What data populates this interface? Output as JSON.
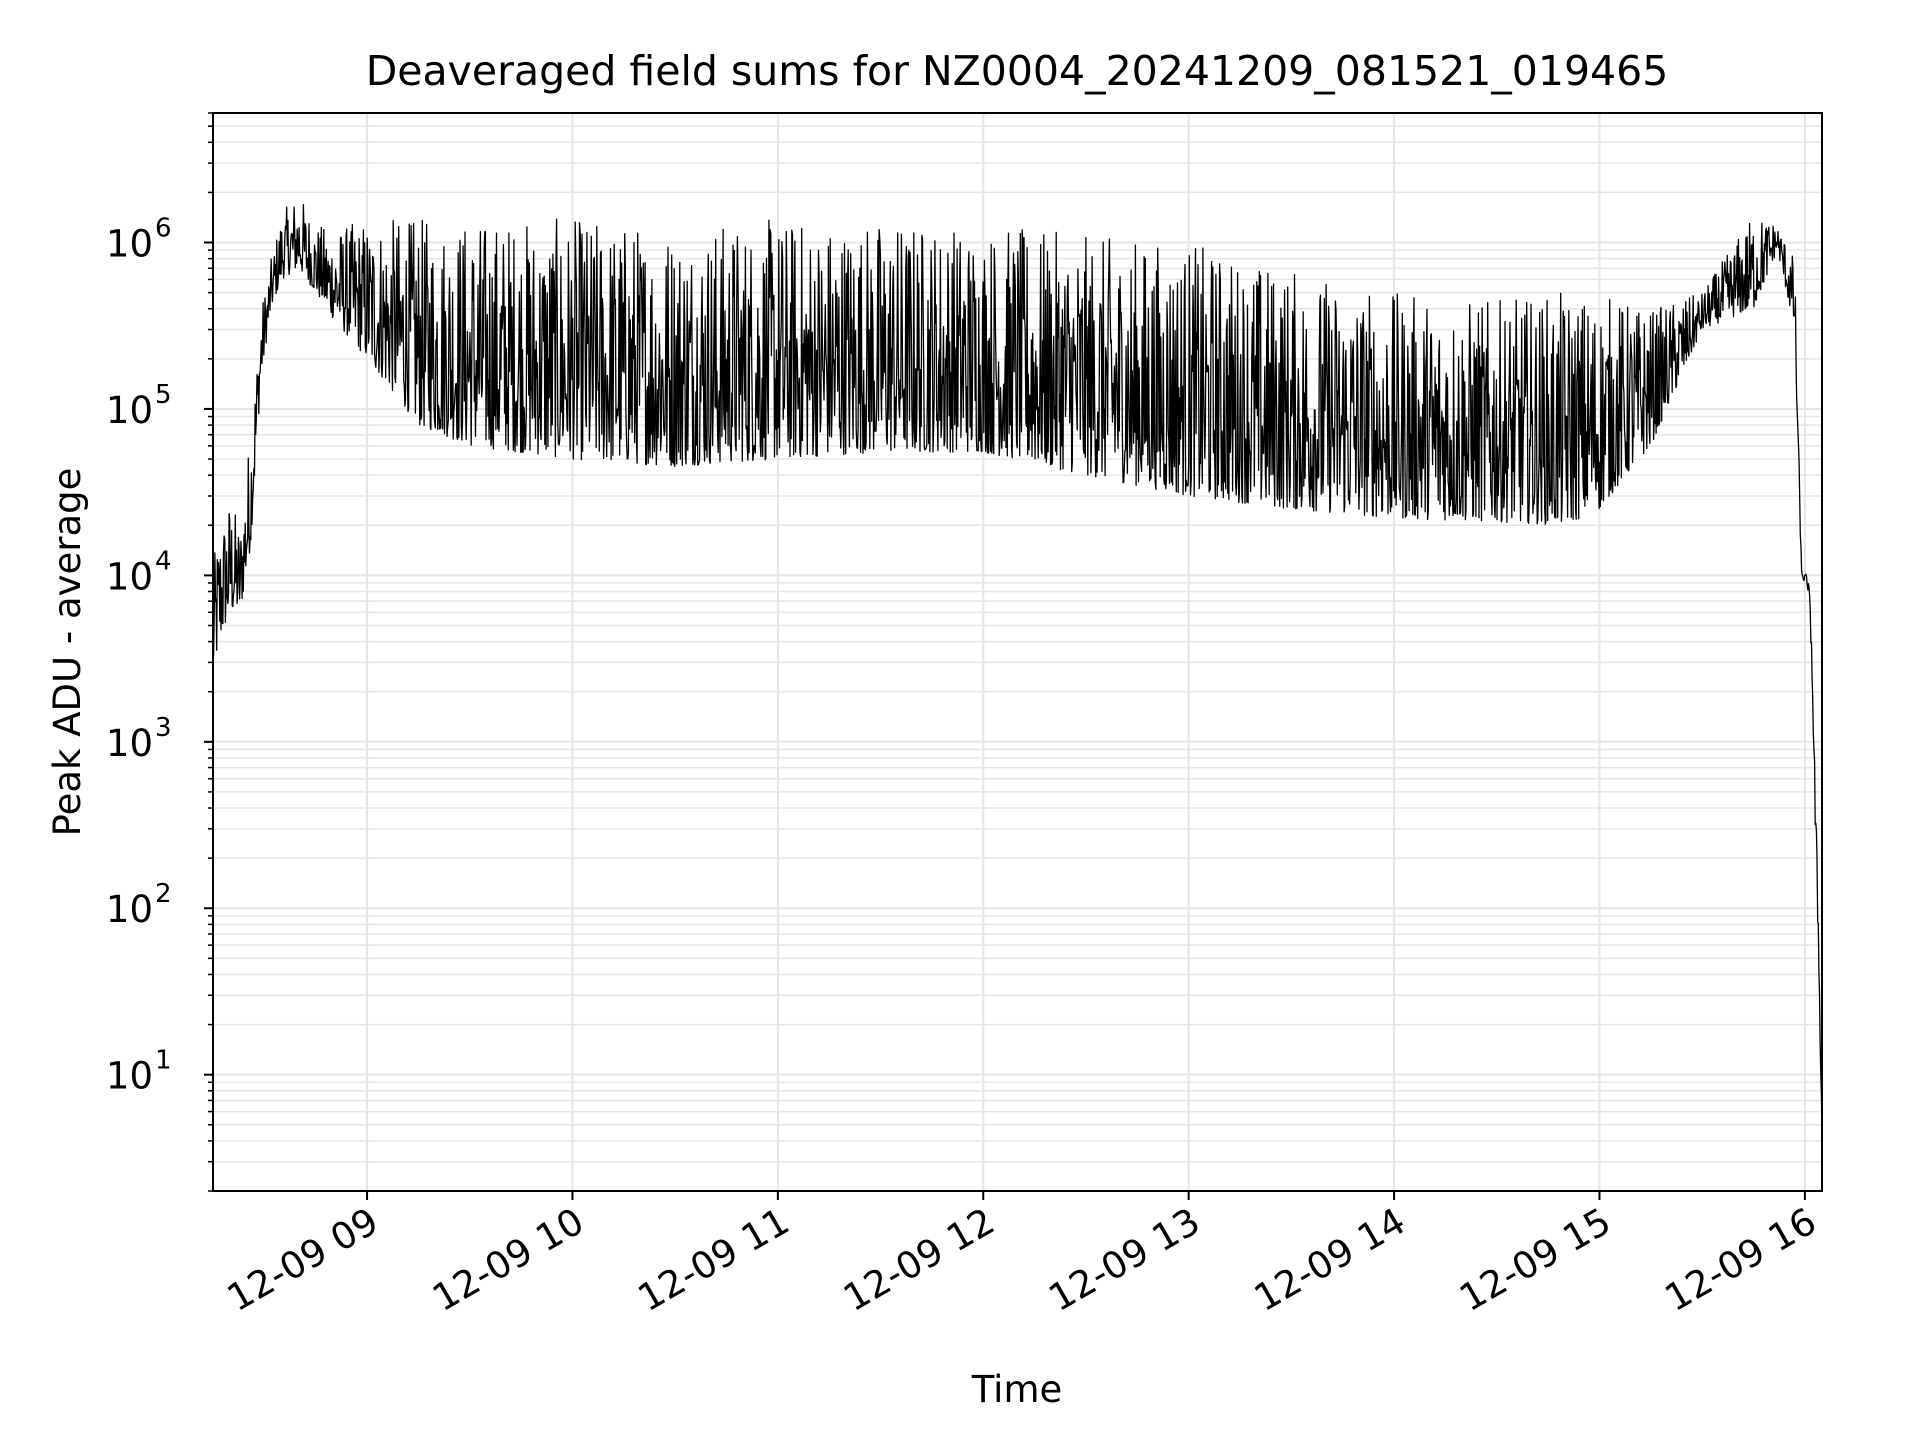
{
  "chart_data": {
    "type": "line",
    "title": "Deaveraged field sums for NZ0004_20241209_081521_019465",
    "xlabel": "Time",
    "ylabel": "Peak ADU - average",
    "yscale": "log",
    "ylim": [
      2,
      6000000
    ],
    "xlim": [
      "2024-12-09 08:15",
      "2024-12-09 16:05"
    ],
    "grid": true,
    "line_color": "#000000",
    "grid_color": "#e5e5e5",
    "x_ticks": [
      {
        "value": "2024-12-09 09:00",
        "label": "12-09 09"
      },
      {
        "value": "2024-12-09 10:00",
        "label": "12-09 10"
      },
      {
        "value": "2024-12-09 11:00",
        "label": "12-09 11"
      },
      {
        "value": "2024-12-09 12:00",
        "label": "12-09 12"
      },
      {
        "value": "2024-12-09 13:00",
        "label": "12-09 13"
      },
      {
        "value": "2024-12-09 14:00",
        "label": "12-09 14"
      },
      {
        "value": "2024-12-09 15:00",
        "label": "12-09 15"
      },
      {
        "value": "2024-12-09 16:00",
        "label": "12-09 16"
      }
    ],
    "y_ticks": [
      {
        "value": 10,
        "base": "10",
        "exp": "1"
      },
      {
        "value": 100,
        "base": "10",
        "exp": "2"
      },
      {
        "value": 1000,
        "base": "10",
        "exp": "3"
      },
      {
        "value": 10000,
        "base": "10",
        "exp": "4"
      },
      {
        "value": 100000,
        "base": "10",
        "exp": "5"
      },
      {
        "value": 1000000,
        "base": "10",
        "exp": "6"
      }
    ],
    "series": [
      {
        "x": [
          "2024-12-09 08:15",
          "2024-12-09 08:17",
          "2024-12-09 08:20",
          "2024-12-09 08:23",
          "2024-12-09 08:26",
          "2024-12-09 08:29",
          "2024-12-09 08:32",
          "2024-12-09 08:35",
          "2024-12-09 08:40",
          "2024-12-09 08:45",
          "2024-12-09 08:50",
          "2024-12-09 09:00",
          "2024-12-09 09:15",
          "2024-12-09 09:30",
          "2024-12-09 10:00",
          "2024-12-09 10:30",
          "2024-12-09 11:00",
          "2024-12-09 11:30",
          "2024-12-09 12:00",
          "2024-12-09 12:30",
          "2024-12-09 13:00",
          "2024-12-09 13:30",
          "2024-12-09 14:00",
          "2024-12-09 14:30",
          "2024-12-09 14:50",
          "2024-12-09 15:00",
          "2024-12-09 15:15",
          "2024-12-09 15:30",
          "2024-12-09 15:45",
          "2024-12-09 15:52",
          "2024-12-09 15:57",
          "2024-12-09 15:59",
          "2024-12-09 16:01",
          "2024-12-09 16:02",
          "2024-12-09 16:03",
          "2024-12-09 16:04",
          "2024-12-09 16:05"
        ],
        "low": [
          2500,
          4000,
          6000,
          6000,
          15000,
          150000,
          400000,
          600000,
          700000,
          500000,
          350000,
          200000,
          80000,
          60000,
          50000,
          45000,
          50000,
          55000,
          55000,
          40000,
          30000,
          25000,
          22000,
          21000,
          20000,
          25000,
          60000,
          300000,
          400000,
          900000,
          300000,
          10000,
          8000,
          3000,
          300,
          50,
          4
        ],
        "high": [
          12000,
          20000,
          30000,
          20000,
          80000,
          400000,
          800000,
          1500000,
          2000000,
          1300000,
          1200000,
          1400000,
          1400000,
          1400000,
          1400000,
          1300000,
          1400000,
          1400000,
          1300000,
          1100000,
          1000000,
          700000,
          500000,
          450000,
          500000,
          500000,
          400000,
          500000,
          1500000,
          1300000,
          800000,
          11000,
          10000,
          5000,
          600,
          100,
          5
        ]
      }
    ]
  }
}
